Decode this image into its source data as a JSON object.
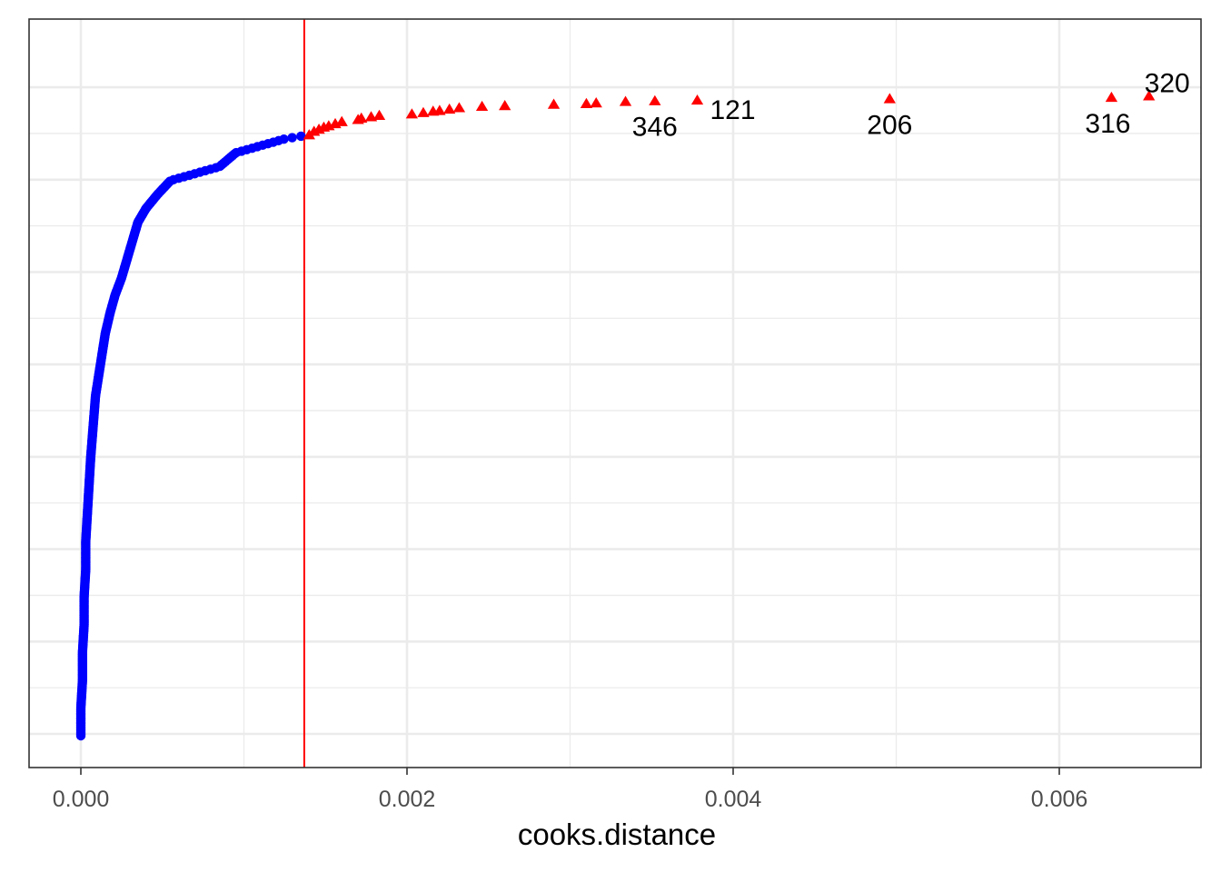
{
  "chart_data": {
    "type": "scatter",
    "title": "",
    "xlabel": "cooks.distance",
    "ylabel": "",
    "xlim": [
      -0.00032,
      0.00683
    ],
    "ylim": [
      0,
      1
    ],
    "x_ticks": [
      {
        "value": 0.0,
        "label": "0.000"
      },
      {
        "value": 0.002,
        "label": "0.002"
      },
      {
        "value": 0.004,
        "label": "0.004"
      },
      {
        "value": 0.006,
        "label": "0.006"
      }
    ],
    "x_minor_ticks": [
      0.001,
      0.003,
      0.005
    ],
    "y_gridlines": 8,
    "grid": true,
    "threshold": {
      "x": 0.00137,
      "color": "#ff0000"
    },
    "series": [
      {
        "marker": "circle",
        "color": "#0000ff",
        "curve": [
          [
            0.0,
            0.0
          ],
          [
            0.0,
            0.04
          ],
          [
            1e-05,
            0.08
          ],
          [
            1e-05,
            0.12
          ],
          [
            2e-05,
            0.16
          ],
          [
            2e-05,
            0.2
          ],
          [
            3e-05,
            0.24
          ],
          [
            3e-05,
            0.28
          ],
          [
            4e-05,
            0.32
          ],
          [
            5e-05,
            0.36
          ],
          [
            6e-05,
            0.4
          ],
          [
            7e-05,
            0.43
          ],
          [
            8e-05,
            0.46
          ],
          [
            9e-05,
            0.49
          ],
          [
            0.00011,
            0.52
          ],
          [
            0.00013,
            0.55
          ],
          [
            0.00015,
            0.58
          ],
          [
            0.00018,
            0.61
          ],
          [
            0.00021,
            0.635
          ],
          [
            0.00025,
            0.66
          ],
          [
            0.0003,
            0.7
          ],
          [
            0.00035,
            0.74
          ],
          [
            0.0004,
            0.76
          ],
          [
            0.00047,
            0.78
          ],
          [
            0.00055,
            0.8
          ],
          [
            0.0007,
            0.81
          ],
          [
            0.00085,
            0.82
          ],
          [
            0.00095,
            0.84
          ],
          [
            0.0011,
            0.85
          ],
          [
            0.00125,
            0.86
          ],
          [
            0.00135,
            0.864
          ]
        ],
        "count": 400
      },
      {
        "marker": "triangle",
        "color": "#ff0000",
        "points": [
          [
            0.0014,
            0.865
          ],
          [
            0.00143,
            0.87
          ],
          [
            0.00146,
            0.873
          ],
          [
            0.00149,
            0.876
          ],
          [
            0.00152,
            0.878
          ],
          [
            0.00156,
            0.881
          ],
          [
            0.0016,
            0.884
          ],
          [
            0.0017,
            0.887
          ],
          [
            0.00172,
            0.889
          ],
          [
            0.00178,
            0.891
          ],
          [
            0.00183,
            0.893
          ],
          [
            0.00203,
            0.895
          ],
          [
            0.0021,
            0.897
          ],
          [
            0.00216,
            0.899
          ],
          [
            0.0022,
            0.9
          ],
          [
            0.00226,
            0.902
          ],
          [
            0.00232,
            0.904
          ],
          [
            0.00246,
            0.906
          ],
          [
            0.0026,
            0.907
          ],
          [
            0.0029,
            0.909
          ],
          [
            0.0031,
            0.91
          ],
          [
            0.00316,
            0.911
          ],
          [
            0.00334,
            0.913
          ],
          [
            0.00352,
            0.914
          ],
          [
            0.00378,
            0.915
          ],
          [
            0.00496,
            0.917
          ],
          [
            0.00632,
            0.919
          ],
          [
            0.00655,
            0.921
          ]
        ]
      }
    ],
    "annotations": [
      {
        "text": "346",
        "x": 0.00352,
        "y": 0.914,
        "position": "below"
      },
      {
        "text": "121",
        "x": 0.00378,
        "y": 0.915,
        "position": "right"
      },
      {
        "text": "206",
        "x": 0.00496,
        "y": 0.917,
        "position": "below"
      },
      {
        "text": "316",
        "x": 0.00632,
        "y": 0.919,
        "position": "below-left"
      },
      {
        "text": "320",
        "x": 0.00655,
        "y": 0.921,
        "position": "above-right"
      }
    ]
  }
}
